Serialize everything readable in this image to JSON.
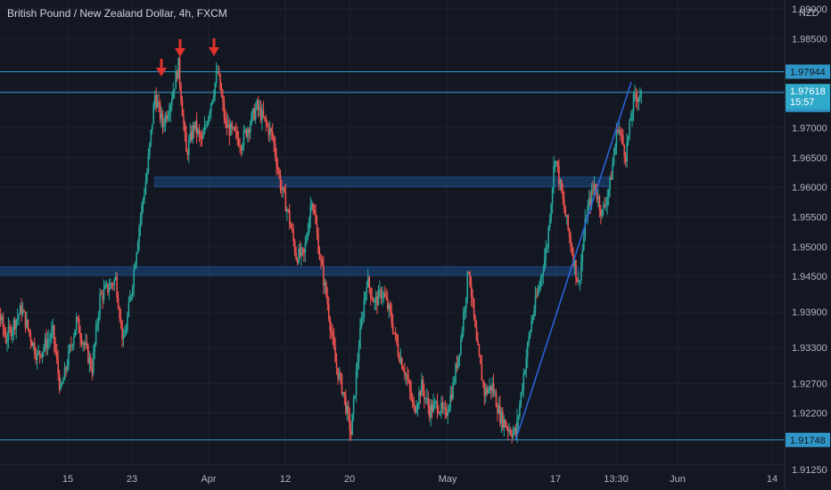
{
  "header": {
    "title": "British Pound / New Zealand Dollar, 4h, FXCM"
  },
  "colors": {
    "background": "#131722",
    "up": "#26a69a",
    "down": "#ef5350",
    "level_line": "#2f95c6",
    "zone_fill": "#1c4a85",
    "trendline": "#2a62d6",
    "arrow": "#e0312d",
    "current_price_tag": "#2fa9c9",
    "level_tag": "#2f95c6"
  },
  "chart_data": {
    "type": "candlestick",
    "title": "British Pound / New Zealand Dollar, 4h, FXCM",
    "price_axis": {
      "currency": "NZD",
      "ticks": [
        "1.91250",
        "1.91748",
        "1.92200",
        "1.92700",
        "1.93300",
        "1.93900",
        "1.94500",
        "1.95000",
        "1.95500",
        "1.96000",
        "1.96500",
        "1.97000",
        "1.97595",
        "1.97618",
        "1.97944",
        "1.98500",
        "1.99000"
      ],
      "range": [
        1.9095,
        1.9915
      ]
    },
    "time_axis": {
      "ticks": [
        "15",
        "23",
        "Apr",
        "12",
        "20",
        "May",
        "17",
        "13:30",
        "Jun",
        "14"
      ]
    },
    "levels": [
      {
        "price": 1.97944,
        "label": "1.97944"
      },
      {
        "price": 1.97595,
        "label": "1.97595"
      },
      {
        "price": 1.91748,
        "label": "1.91748"
      }
    ],
    "current_price": {
      "price": 1.97618,
      "label": "1.97618",
      "countdown": "15:57"
    },
    "zones": [
      {
        "from_time": "Mar 24",
        "to_time": "May 21",
        "low": 1.9601,
        "high": 1.9617
      },
      {
        "from_time": "Mar 1",
        "to_time": "May 17",
        "low": 1.9452,
        "high": 1.9466
      }
    ],
    "trendline": {
      "from": {
        "time": "May 9",
        "price": 1.9175
      },
      "to": {
        "time": "May 25",
        "price": 1.9764
      }
    },
    "arrows_at_highs": [
      "Mar 24",
      "Mar 27",
      "Apr 1"
    ],
    "price_path": [
      {
        "time": "Mar 1",
        "price": 1.9385
      },
      {
        "time": "Mar 3",
        "price": 1.9445
      },
      {
        "time": "Mar 5",
        "price": 1.9345
      },
      {
        "time": "Mar 7",
        "price": 1.9395
      },
      {
        "time": "Mar 9",
        "price": 1.9315
      },
      {
        "time": "Mar 11",
        "price": 1.9355
      },
      {
        "time": "Mar 12",
        "price": 1.9255
      },
      {
        "time": "Mar 14",
        "price": 1.9375
      },
      {
        "time": "Mar 16",
        "price": 1.9295
      },
      {
        "time": "Mar 17",
        "price": 1.9415
      },
      {
        "time": "Mar 19",
        "price": 1.9445
      },
      {
        "time": "Mar 20",
        "price": 1.9335
      },
      {
        "time": "Mar 21",
        "price": 1.9425
      },
      {
        "time": "Mar 22",
        "price": 1.9535
      },
      {
        "time": "Mar 23",
        "price": 1.9625
      },
      {
        "time": "Mar 24",
        "price": 1.9755
      },
      {
        "time": "Mar 25",
        "price": 1.9705
      },
      {
        "time": "Mar 26",
        "price": 1.9745
      },
      {
        "time": "Mar 27",
        "price": 1.9805
      },
      {
        "time": "Mar 28",
        "price": 1.9655
      },
      {
        "time": "Mar 29",
        "price": 1.9705
      },
      {
        "time": "Mar 30",
        "price": 1.9675
      },
      {
        "time": "Mar 31",
        "price": 1.9735
      },
      {
        "time": "Apr 1",
        "price": 1.9795
      },
      {
        "time": "Apr 2",
        "price": 1.9705
      },
      {
        "time": "Apr 4",
        "price": 1.9675
      },
      {
        "time": "Apr 6",
        "price": 1.9735
      },
      {
        "time": "Apr 8",
        "price": 1.9685
      },
      {
        "time": "Apr 9",
        "price": 1.9605
      },
      {
        "time": "Apr 10",
        "price": 1.9555
      },
      {
        "time": "Apr 11",
        "price": 1.9485
      },
      {
        "time": "Apr 12",
        "price": 1.9485
      },
      {
        "time": "Apr 13",
        "price": 1.9585
      },
      {
        "time": "Apr 14",
        "price": 1.9485
      },
      {
        "time": "Apr 15",
        "price": 1.9405
      },
      {
        "time": "Apr 16",
        "price": 1.9305
      },
      {
        "time": "Apr 17",
        "price": 1.9255
      },
      {
        "time": "Apr 18",
        "price": 1.9185
      },
      {
        "time": "Apr 19",
        "price": 1.9335
      },
      {
        "time": "Apr 20",
        "price": 1.9445
      },
      {
        "time": "Apr 21",
        "price": 1.9405
      },
      {
        "time": "Apr 22",
        "price": 1.9425
      },
      {
        "time": "Apr 23",
        "price": 1.9385
      },
      {
        "time": "Apr 24",
        "price": 1.9325
      },
      {
        "time": "Apr 25",
        "price": 1.9285
      },
      {
        "time": "Apr 26",
        "price": 1.9225
      },
      {
        "time": "Apr 27",
        "price": 1.9265
      },
      {
        "time": "Apr 28",
        "price": 1.9225
      },
      {
        "time": "Apr 29",
        "price": 1.9235
      },
      {
        "time": "Apr 30",
        "price": 1.9215
      },
      {
        "time": "May 1",
        "price": 1.9265
      },
      {
        "time": "May 2",
        "price": 1.9345
      },
      {
        "time": "May 3",
        "price": 1.9465
      },
      {
        "time": "May 4",
        "price": 1.9335
      },
      {
        "time": "May 5",
        "price": 1.9255
      },
      {
        "time": "May 6",
        "price": 1.9265
      },
      {
        "time": "May 7",
        "price": 1.9215
      },
      {
        "time": "May 8",
        "price": 1.9195
      },
      {
        "time": "May 9",
        "price": 1.9185
      },
      {
        "time": "May 10",
        "price": 1.9285
      },
      {
        "time": "May 11",
        "price": 1.9375
      },
      {
        "time": "May 12",
        "price": 1.9435
      },
      {
        "time": "May 13",
        "price": 1.9505
      },
      {
        "time": "May 14",
        "price": 1.9655
      },
      {
        "time": "May 15",
        "price": 1.9575
      },
      {
        "time": "May 16",
        "price": 1.9505
      },
      {
        "time": "May 17",
        "price": 1.9435
      },
      {
        "time": "May 18",
        "price": 1.9555
      },
      {
        "time": "May 19",
        "price": 1.9605
      },
      {
        "time": "May 20",
        "price": 1.9555
      },
      {
        "time": "May 21",
        "price": 1.9605
      },
      {
        "time": "May 22",
        "price": 1.9705
      },
      {
        "time": "May 23",
        "price": 1.9655
      },
      {
        "time": "May 24",
        "price": 1.9745
      },
      {
        "time": "May 25",
        "price": 1.9762
      }
    ]
  }
}
